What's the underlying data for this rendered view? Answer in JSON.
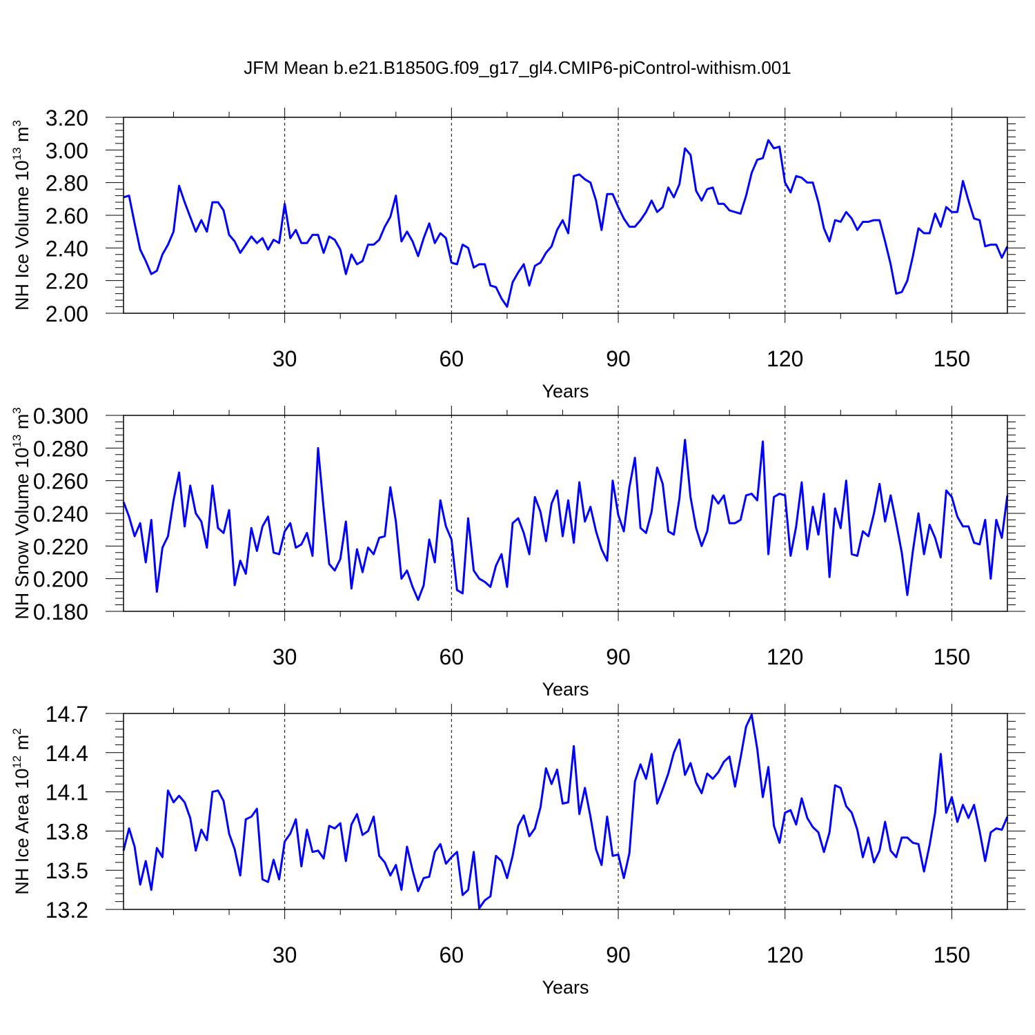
{
  "figure": {
    "title": "JFM Mean b.e21.B1850G.f09_g17_gl4.CMIP6-piControl-withism.001"
  },
  "chart_data": [
    {
      "type": "line",
      "xlabel": "Years",
      "ylabel": "NH Ice Volume 10",
      "ylabel_exponent": "13",
      "ylabel_unit": "m",
      "ylabel_unit_exponent": "3",
      "xlim": [
        1,
        160
      ],
      "ylim": [
        2.0,
        3.2
      ],
      "xticks": [
        "30",
        "60",
        "90",
        "120",
        "150"
      ],
      "yticks": [
        "2.00",
        "2.20",
        "2.40",
        "2.60",
        "2.80",
        "3.00",
        "3.20"
      ],
      "grid": "vertical dashed at labeled x ticks",
      "line_color": "#0000ff",
      "series": [
        {
          "x_start": 1,
          "values": [
            2.71,
            2.72,
            2.55,
            2.39,
            2.32,
            2.24,
            2.26,
            2.36,
            2.42,
            2.5,
            2.78,
            2.68,
            2.59,
            2.5,
            2.57,
            2.5,
            2.68,
            2.68,
            2.63,
            2.48,
            2.44,
            2.37,
            2.42,
            2.47,
            2.43,
            2.46,
            2.39,
            2.45,
            2.43,
            2.67,
            2.46,
            2.51,
            2.43,
            2.43,
            2.48,
            2.48,
            2.37,
            2.47,
            2.45,
            2.39,
            2.24,
            2.36,
            2.3,
            2.32,
            2.42,
            2.42,
            2.45,
            2.53,
            2.59,
            2.72,
            2.44,
            2.5,
            2.44,
            2.35,
            2.46,
            2.55,
            2.43,
            2.49,
            2.46,
            2.31,
            2.3,
            2.42,
            2.4,
            2.28,
            2.3,
            2.3,
            2.17,
            2.16,
            2.09,
            2.04,
            2.19,
            2.25,
            2.3,
            2.17,
            2.29,
            2.31,
            2.37,
            2.41,
            2.51,
            2.57,
            2.49,
            2.84,
            2.85,
            2.82,
            2.8,
            2.69,
            2.51,
            2.73,
            2.73,
            2.65,
            2.58,
            2.53,
            2.53,
            2.57,
            2.62,
            2.69,
            2.62,
            2.65,
            2.77,
            2.71,
            2.79,
            3.01,
            2.97,
            2.75,
            2.69,
            2.76,
            2.77,
            2.67,
            2.67,
            2.63,
            2.62,
            2.61,
            2.72,
            2.86,
            2.94,
            2.95,
            3.06,
            3.01,
            3.02,
            2.8,
            2.74,
            2.84,
            2.83,
            2.8,
            2.8,
            2.68,
            2.52,
            2.44,
            2.57,
            2.56,
            2.62,
            2.58,
            2.51,
            2.56,
            2.56,
            2.57,
            2.57,
            2.44,
            2.3,
            2.12,
            2.13,
            2.2,
            2.35,
            2.52,
            2.49,
            2.49,
            2.61,
            2.53,
            2.65,
            2.62,
            2.62,
            2.81,
            2.69,
            2.58,
            2.57,
            2.41,
            2.42,
            2.42,
            2.34,
            2.41
          ]
        }
      ]
    },
    {
      "type": "line",
      "xlabel": "Years",
      "ylabel": "NH Snow Volume 10",
      "ylabel_exponent": "13",
      "ylabel_unit": "m",
      "ylabel_unit_exponent": "3",
      "xlim": [
        1,
        160
      ],
      "ylim": [
        0.18,
        0.3
      ],
      "xticks": [
        "30",
        "60",
        "90",
        "120",
        "150"
      ],
      "yticks": [
        "0.180",
        "0.200",
        "0.220",
        "0.240",
        "0.260",
        "0.280",
        "0.300"
      ],
      "grid": "vertical dashed at labeled x ticks",
      "line_color": "#0000ff",
      "series": [
        {
          "x_start": 1,
          "values": [
            0.247,
            0.238,
            0.226,
            0.234,
            0.21,
            0.236,
            0.192,
            0.219,
            0.226,
            0.248,
            0.265,
            0.232,
            0.257,
            0.24,
            0.235,
            0.219,
            0.257,
            0.231,
            0.228,
            0.242,
            0.196,
            0.211,
            0.203,
            0.231,
            0.217,
            0.232,
            0.238,
            0.216,
            0.215,
            0.229,
            0.234,
            0.219,
            0.221,
            0.228,
            0.214,
            0.28,
            0.243,
            0.209,
            0.205,
            0.212,
            0.235,
            0.194,
            0.218,
            0.204,
            0.219,
            0.215,
            0.225,
            0.226,
            0.256,
            0.235,
            0.2,
            0.205,
            0.195,
            0.187,
            0.196,
            0.224,
            0.21,
            0.248,
            0.232,
            0.224,
            0.193,
            0.191,
            0.237,
            0.205,
            0.2,
            0.198,
            0.195,
            0.208,
            0.215,
            0.195,
            0.234,
            0.237,
            0.228,
            0.215,
            0.25,
            0.241,
            0.223,
            0.246,
            0.254,
            0.226,
            0.248,
            0.222,
            0.259,
            0.235,
            0.244,
            0.229,
            0.218,
            0.211,
            0.26,
            0.239,
            0.229,
            0.256,
            0.274,
            0.231,
            0.228,
            0.241,
            0.268,
            0.258,
            0.229,
            0.227,
            0.249,
            0.285,
            0.25,
            0.231,
            0.22,
            0.229,
            0.251,
            0.246,
            0.251,
            0.234,
            0.234,
            0.236,
            0.251,
            0.252,
            0.248,
            0.284,
            0.215,
            0.25,
            0.252,
            0.251,
            0.214,
            0.232,
            0.259,
            0.218,
            0.244,
            0.227,
            0.252,
            0.201,
            0.243,
            0.231,
            0.26,
            0.215,
            0.214,
            0.229,
            0.226,
            0.24,
            0.258,
            0.235,
            0.251,
            0.234,
            0.216,
            0.19,
            0.217,
            0.24,
            0.215,
            0.233,
            0.225,
            0.213,
            0.254,
            0.25,
            0.238,
            0.232,
            0.232,
            0.222,
            0.221,
            0.236,
            0.2,
            0.236,
            0.225,
            0.251
          ]
        }
      ]
    },
    {
      "type": "line",
      "xlabel": "Years",
      "ylabel": "NH Ice Area 10",
      "ylabel_exponent": "12",
      "ylabel_unit": "m",
      "ylabel_unit_exponent": "2",
      "xlim": [
        1,
        160
      ],
      "ylim": [
        13.2,
        14.7
      ],
      "xticks": [
        "30",
        "60",
        "90",
        "120",
        "150"
      ],
      "yticks": [
        "13.2",
        "13.5",
        "13.8",
        "14.1",
        "14.4",
        "14.7"
      ],
      "grid": "vertical dashed at labeled x ticks",
      "line_color": "#0000ff",
      "series": [
        {
          "x_start": 1,
          "values": [
            13.65,
            13.82,
            13.68,
            13.39,
            13.57,
            13.35,
            13.67,
            13.6,
            14.11,
            14.02,
            14.07,
            14.02,
            13.9,
            13.65,
            13.81,
            13.73,
            14.1,
            14.11,
            14.03,
            13.78,
            13.66,
            13.46,
            13.89,
            13.91,
            13.97,
            13.43,
            13.41,
            13.58,
            13.43,
            13.72,
            13.78,
            13.89,
            13.53,
            13.81,
            13.64,
            13.65,
            13.59,
            13.84,
            13.82,
            13.86,
            13.57,
            13.85,
            13.93,
            13.77,
            13.8,
            13.91,
            13.61,
            13.56,
            13.46,
            13.54,
            13.35,
            13.68,
            13.5,
            13.34,
            13.44,
            13.45,
            13.64,
            13.7,
            13.55,
            13.6,
            13.64,
            13.31,
            13.35,
            13.64,
            13.21,
            13.27,
            13.3,
            13.61,
            13.57,
            13.44,
            13.61,
            13.84,
            13.92,
            13.76,
            13.82,
            13.98,
            14.28,
            14.16,
            14.27,
            14.01,
            14.02,
            14.45,
            13.93,
            14.13,
            13.91,
            13.66,
            13.54,
            13.91,
            13.61,
            13.62,
            13.44,
            13.63,
            14.18,
            14.31,
            14.2,
            14.39,
            14.01,
            14.12,
            14.24,
            14.4,
            14.5,
            14.23,
            14.32,
            14.17,
            14.09,
            14.24,
            14.2,
            14.25,
            14.33,
            14.37,
            14.14,
            14.36,
            14.6,
            14.69,
            14.43,
            14.06,
            14.29,
            13.84,
            13.71,
            13.94,
            13.96,
            13.85,
            14.05,
            13.9,
            13.83,
            13.79,
            13.64,
            13.79,
            14.15,
            14.13,
            13.99,
            13.94,
            13.81,
            13.6,
            13.75,
            13.56,
            13.65,
            13.87,
            13.65,
            13.6,
            13.75,
            13.75,
            13.71,
            13.7,
            13.49,
            13.69,
            13.94,
            14.39,
            13.94,
            14.06,
            13.87,
            14.0,
            13.9,
            14.0,
            13.8,
            13.57,
            13.79,
            13.82,
            13.81,
            13.91
          ]
        }
      ]
    }
  ]
}
